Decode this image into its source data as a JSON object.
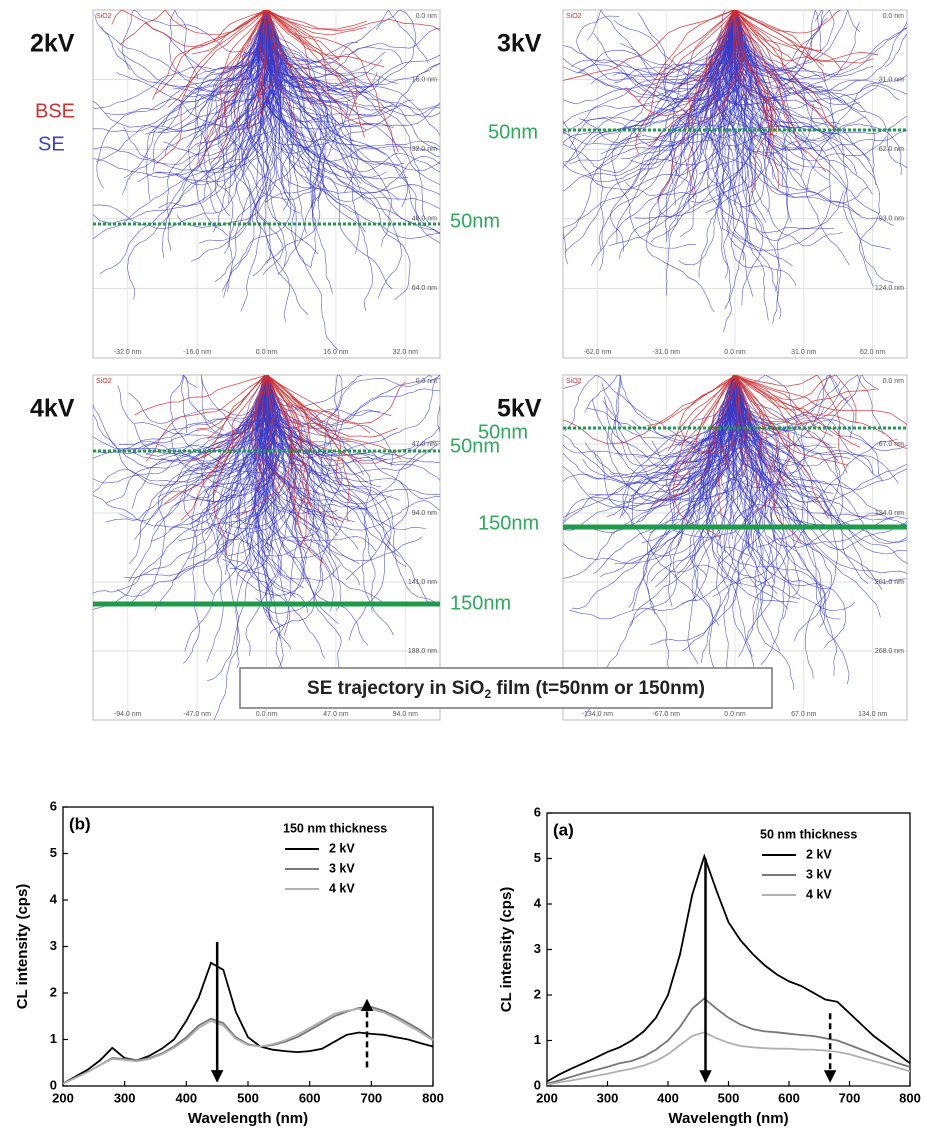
{
  "simulations": {
    "legend": {
      "bse": "BSE",
      "se": "SE"
    },
    "caption": {
      "before": "SE trajectory in SiO",
      "sub": "2",
      "after": " film (t=50nm or 150nm)"
    },
    "panels": [
      {
        "label": "2kV",
        "material": "SiO2",
        "xticks": [
          "-32.0 nm",
          "-16.0 nm",
          "0.0 nm",
          "16.0 nm",
          "32.0 nm"
        ],
        "yticks": [
          "0.0 nm",
          "16.0 nm",
          "32.0 nm",
          "48.0 nm",
          "64.0 nm"
        ],
        "thickness": [
          {
            "label": "50nm",
            "style": "dotted"
          }
        ]
      },
      {
        "label": "3kV",
        "material": "SiO2",
        "xticks": [
          "-62.0 nm",
          "-31.0 nm",
          "0.0 nm",
          "31.0 nm",
          "62.0 nm"
        ],
        "yticks": [
          "0.0 nm",
          "31.0 nm",
          "62.0 nm",
          "93.0 nm",
          "124.0 nm"
        ],
        "thickness": [
          {
            "label": "50nm",
            "style": "dotted"
          }
        ]
      },
      {
        "label": "4kV",
        "material": "SiO2",
        "xticks": [
          "-94.0 nm",
          "-47.0 nm",
          "0.0 nm",
          "47.0 nm",
          "94.0 nm"
        ],
        "yticks": [
          "0.0 nm",
          "47.0 nm",
          "94.0 nm",
          "141.0 nm",
          "188.0 nm"
        ],
        "thickness": [
          {
            "label": "50nm",
            "style": "dotted"
          },
          {
            "label": "150nm",
            "style": "solid"
          }
        ]
      },
      {
        "label": "5kV",
        "material": "SiO2",
        "xticks": [
          "-134.0 nm",
          "-67.0 nm",
          "0.0 nm",
          "67.0 nm",
          "134.0 nm"
        ],
        "yticks": [
          "0.0 nm",
          "67.0 nm",
          "134.0 nm",
          "201.0 nm",
          "268.0 nm"
        ],
        "thickness": [
          {
            "label": "50nm",
            "style": "dotted"
          },
          {
            "label": "150nm",
            "style": "solid"
          }
        ]
      }
    ]
  },
  "chart_data": [
    {
      "type": "line",
      "title": "(b)",
      "legend_title": "150 nm thickness",
      "legend": "upper right",
      "x_label": "Wavelength (nm)",
      "y_label": "CL intensity (cps)",
      "xlim": [
        200,
        800
      ],
      "ylim": [
        0,
        6
      ],
      "xticks": [
        200,
        300,
        400,
        500,
        600,
        700,
        800
      ],
      "yticks": [
        0,
        1,
        2,
        3,
        4,
        5,
        6
      ],
      "x": [
        200,
        220,
        240,
        260,
        280,
        300,
        320,
        340,
        360,
        380,
        400,
        420,
        440,
        460,
        480,
        500,
        520,
        540,
        560,
        580,
        600,
        620,
        640,
        660,
        680,
        700,
        720,
        740,
        760,
        780,
        800
      ],
      "series": [
        {
          "name": "2 kV",
          "color": "#000000",
          "values": [
            0.05,
            0.2,
            0.35,
            0.55,
            0.82,
            0.6,
            0.55,
            0.65,
            0.8,
            1.0,
            1.4,
            1.9,
            2.65,
            2.5,
            1.6,
            1.05,
            0.85,
            0.78,
            0.75,
            0.73,
            0.75,
            0.8,
            0.95,
            1.1,
            1.15,
            1.12,
            1.1,
            1.05,
            1.0,
            0.92,
            0.85
          ]
        },
        {
          "name": "3 kV",
          "color": "#777777",
          "values": [
            0.05,
            0.18,
            0.3,
            0.45,
            0.6,
            0.58,
            0.55,
            0.6,
            0.7,
            0.85,
            1.05,
            1.3,
            1.45,
            1.35,
            1.05,
            0.9,
            0.85,
            0.88,
            0.95,
            1.05,
            1.2,
            1.35,
            1.5,
            1.6,
            1.68,
            1.7,
            1.62,
            1.5,
            1.35,
            1.2,
            1.0
          ]
        },
        {
          "name": "4 kV",
          "color": "#b0b0b0",
          "values": [
            0.05,
            0.17,
            0.3,
            0.45,
            0.58,
            0.56,
            0.53,
            0.58,
            0.68,
            0.82,
            1.0,
            1.25,
            1.4,
            1.3,
            1.02,
            0.88,
            0.85,
            0.9,
            0.98,
            1.1,
            1.25,
            1.4,
            1.55,
            1.62,
            1.66,
            1.65,
            1.58,
            1.45,
            1.3,
            1.15,
            0.98
          ]
        }
      ],
      "arrows": [
        {
          "x": 450,
          "y": [
            3.1,
            0.1
          ],
          "style": "solid"
        },
        {
          "x": 693,
          "y": [
            0.4,
            1.85
          ],
          "style": "dashed"
        }
      ]
    },
    {
      "type": "line",
      "title": "(a)",
      "legend_title": "50 nm thickness",
      "legend": "upper right",
      "x_label": "Wavelength (nm)",
      "y_label": "CL intensity (cps)",
      "xlim": [
        200,
        800
      ],
      "ylim": [
        0,
        6
      ],
      "xticks": [
        200,
        300,
        400,
        500,
        600,
        700,
        800
      ],
      "yticks": [
        0,
        1,
        2,
        3,
        4,
        5,
        6
      ],
      "x": [
        200,
        220,
        240,
        260,
        280,
        300,
        320,
        340,
        360,
        380,
        400,
        420,
        440,
        460,
        480,
        500,
        520,
        540,
        560,
        580,
        600,
        620,
        640,
        660,
        680,
        700,
        720,
        740,
        760,
        780,
        800
      ],
      "series": [
        {
          "name": "2 kV",
          "color": "#000000",
          "values": [
            0.1,
            0.25,
            0.38,
            0.5,
            0.62,
            0.75,
            0.85,
            1.0,
            1.2,
            1.5,
            2.0,
            2.9,
            4.2,
            5.05,
            4.3,
            3.6,
            3.2,
            2.9,
            2.65,
            2.45,
            2.3,
            2.2,
            2.05,
            1.9,
            1.85,
            1.6,
            1.35,
            1.1,
            0.9,
            0.7,
            0.5
          ]
        },
        {
          "name": "3 kV",
          "color": "#777777",
          "values": [
            0.05,
            0.12,
            0.2,
            0.28,
            0.35,
            0.42,
            0.5,
            0.55,
            0.65,
            0.8,
            1.0,
            1.3,
            1.7,
            1.92,
            1.7,
            1.5,
            1.35,
            1.25,
            1.2,
            1.18,
            1.15,
            1.12,
            1.1,
            1.05,
            1.0,
            0.9,
            0.8,
            0.7,
            0.6,
            0.5,
            0.42
          ]
        },
        {
          "name": "4 kV",
          "color": "#b0b0b0",
          "values": [
            0.03,
            0.08,
            0.12,
            0.17,
            0.22,
            0.27,
            0.33,
            0.38,
            0.45,
            0.55,
            0.7,
            0.9,
            1.1,
            1.18,
            1.05,
            0.95,
            0.88,
            0.85,
            0.83,
            0.82,
            0.82,
            0.8,
            0.8,
            0.78,
            0.75,
            0.7,
            0.62,
            0.55,
            0.48,
            0.4,
            0.32
          ]
        }
      ],
      "arrows": [
        {
          "x": 462,
          "y": [
            5.0,
            0.1
          ],
          "style": "solid"
        },
        {
          "x": 668,
          "y": [
            1.6,
            0.1
          ],
          "style": "dashed"
        }
      ]
    }
  ]
}
